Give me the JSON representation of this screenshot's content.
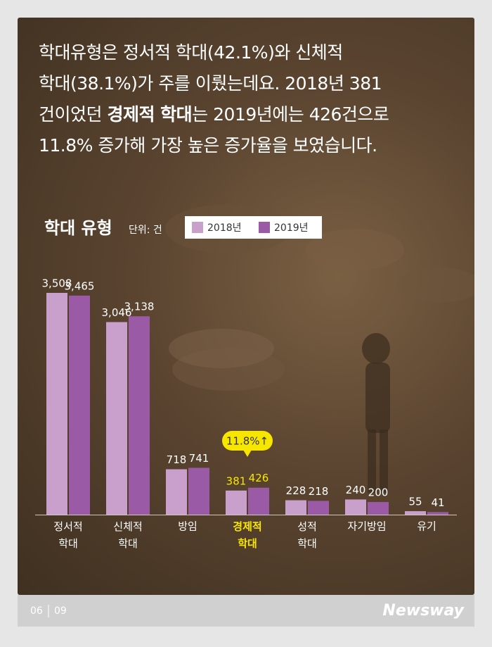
{
  "intro": [
    [
      "학대유형은 정서적 학대(42.1%)와 신체적"
    ],
    [
      "학대(38.1%)가 주를 이뤘는데요. 2018년 381"
    ],
    [
      "건이었던 ",
      "경제적 학대",
      "는 2019년에는 426건으로"
    ],
    [
      "11.8% 증가해 가장 높은 증가율을 보였습니다."
    ]
  ],
  "chart_data": {
    "type": "bar",
    "title": "학대 유형",
    "unit": "단위: 건",
    "categories": [
      "정서적 학대",
      "신체적 학대",
      "방임",
      "경제적 학대",
      "성적 학대",
      "자기방임",
      "유기"
    ],
    "series": [
      {
        "name": "2018년",
        "color": "#c9a0cc",
        "values": [
          3508,
          3046,
          718,
          381,
          228,
          240,
          55
        ],
        "value_labels": [
          "3,508",
          "3,046",
          "718",
          "381",
          "228",
          "240",
          "55"
        ]
      },
      {
        "name": "2019년",
        "color": "#9a5aa6",
        "values": [
          3465,
          3138,
          741,
          426,
          218,
          200,
          41
        ],
        "value_labels": [
          "3,465",
          "3,138",
          "741",
          "426",
          "218",
          "200",
          "41"
        ]
      }
    ],
    "annotation": "11.8%↑",
    "highlight_color": "#f7e600"
  },
  "footer": {
    "page": "06",
    "total": "09",
    "brand": "Newsway"
  }
}
